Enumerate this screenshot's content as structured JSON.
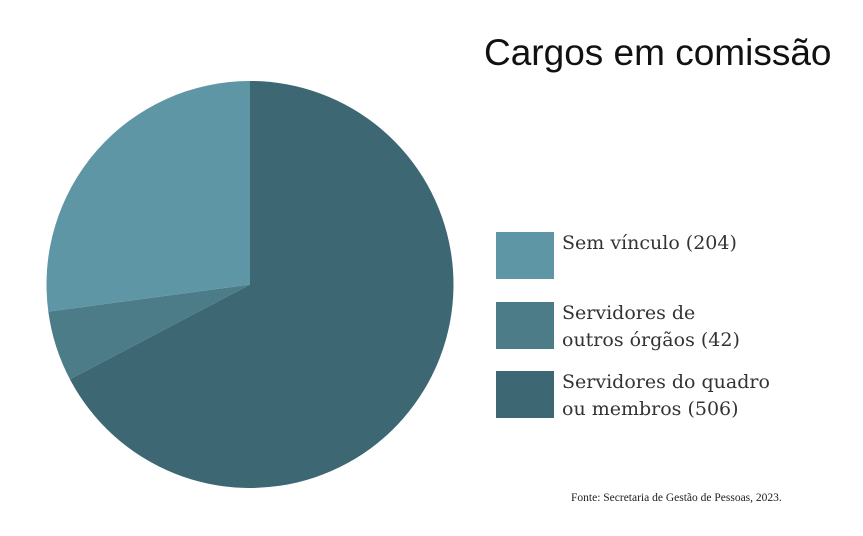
{
  "chart_data": {
    "type": "pie",
    "title": "Cargos em comissão",
    "start_angle": "12 o'clock",
    "direction": "clockwise",
    "slices": [
      {
        "label": "Servidores do quadro ou membros (506)",
        "value": 506,
        "color": "#3D6873"
      },
      {
        "label": "Servidores de outros órgãos (42)",
        "value": 42,
        "color": "#4C7C88"
      },
      {
        "label": "Sem vínculo (204)",
        "value": 204,
        "color": "#5E96A6"
      }
    ],
    "legend": {
      "placement": "right",
      "entries": [
        {
          "label": "Sem vínculo (204)",
          "color": "#5E96A6"
        },
        {
          "label": "Servidores de\noutros órgãos (42)",
          "color": "#4C7C88"
        },
        {
          "label": "Servidores do quadro\nou membros (506)",
          "color": "#3D6873"
        }
      ]
    },
    "source": "Fonte:  Secretaria de Gestão de Pessoas, 2023."
  }
}
